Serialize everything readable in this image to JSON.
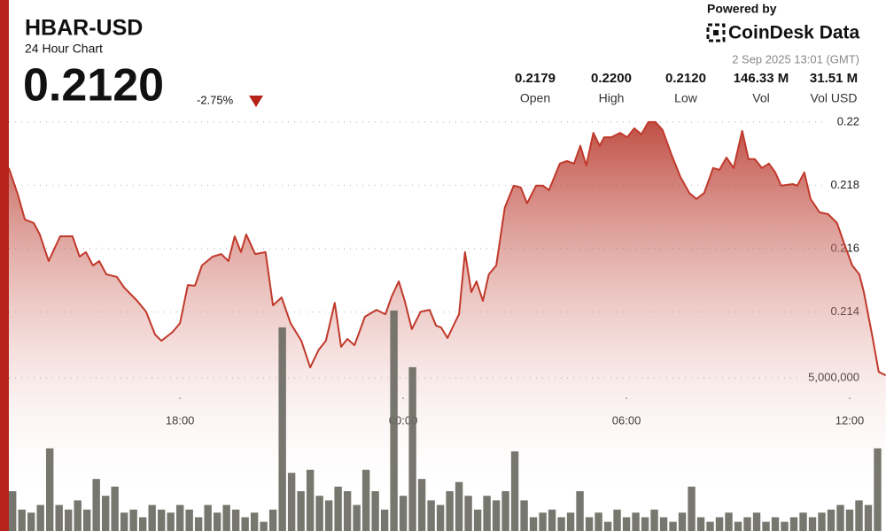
{
  "header": {
    "symbol": "HBAR-USD",
    "subtitle": "24 Hour Chart",
    "price": "0.2120",
    "change": "-2.75%",
    "powered_by": "Powered by",
    "brand": "CoinDesk Data",
    "timestamp": "2 Sep 2025 13:01 (GMT)"
  },
  "stats": [
    {
      "value": "0.2179",
      "label": "Open"
    },
    {
      "value": "0.2200",
      "label": "High"
    },
    {
      "value": "0.2120",
      "label": "Low"
    },
    {
      "value": "146.33 M",
      "label": "Vol"
    },
    {
      "value": "31.51 M",
      "label": "Vol USD"
    }
  ],
  "chart_data": {
    "type": "line",
    "color": "#c0392b",
    "x": [
      13.4,
      13.64,
      13.83,
      14.07,
      14.23,
      14.47,
      14.78,
      15.11,
      15.3,
      15.47,
      15.66,
      15.83,
      16.02,
      16.3,
      16.5,
      16.85,
      17.09,
      17.33,
      17.5,
      17.8,
      18,
      18.21,
      18.4,
      18.59,
      18.88,
      19.11,
      19.3,
      19.47,
      19.64,
      19.78,
      20.02,
      20.3,
      20.5,
      20.73,
      20.97,
      21.26,
      21.5,
      21.73,
      21.92,
      22.16,
      22.33,
      22.5,
      22.69,
      22.97,
      23.28,
      23.52,
      23.69,
      23.88,
      24.04,
      24.23,
      24.47,
      24.71,
      24.88,
      25.02,
      25.19,
      25.42,
      25.5,
      25.66,
      25.83,
      25.97,
      26.14,
      26.3,
      26.5,
      26.73,
      26.97,
      27.16,
      27.33,
      27.57,
      27.76,
      27.92,
      28.21,
      28.4,
      28.59,
      28.76,
      28.92,
      29.11,
      29.28,
      29.4,
      29.59,
      29.83,
      30.02,
      30.21,
      30.4,
      30.59,
      30.78,
      30.97,
      31.21,
      31.45,
      31.69,
      31.88,
      32.09,
      32.33,
      32.5,
      32.69,
      32.88,
      33.11,
      33.28,
      33.45,
      33.64,
      33.83,
      34,
      34.16,
      34.47,
      34.59,
      34.78,
      34.95,
      35.19,
      35.42,
      35.66,
      35.85,
      36.07,
      36.26,
      36.38,
      36.61,
      36.78,
      36.97
    ],
    "values": [
      0.21855,
      0.21771,
      0.21692,
      0.21681,
      0.21645,
      0.21561,
      0.21639,
      0.21639,
      0.21575,
      0.21589,
      0.21547,
      0.21561,
      0.21519,
      0.21511,
      0.21477,
      0.21435,
      0.21401,
      0.21329,
      0.21309,
      0.21337,
      0.21365,
      0.21485,
      0.21483,
      0.21547,
      0.21575,
      0.21583,
      0.21561,
      0.21639,
      0.21589,
      0.21645,
      0.21583,
      0.21589,
      0.21421,
      0.21446,
      0.21365,
      0.21309,
      0.21225,
      0.21281,
      0.21309,
      0.21429,
      0.2129,
      0.21315,
      0.21295,
      0.21385,
      0.21407,
      0.21393,
      0.21449,
      0.21497,
      0.21435,
      0.21346,
      0.21401,
      0.21407,
      0.21357,
      0.21351,
      0.21318,
      0.21374,
      0.21393,
      0.21589,
      0.21463,
      0.21497,
      0.21435,
      0.21519,
      0.21547,
      0.21729,
      0.21799,
      0.21793,
      0.21743,
      0.21799,
      0.21799,
      0.21785,
      0.21869,
      0.21877,
      0.21869,
      0.21925,
      0.21863,
      0.21966,
      0.21925,
      0.21952,
      0.21952,
      0.21966,
      0.21952,
      0.2198,
      0.21961,
      0.22,
      0.22,
      0.21975,
      0.21897,
      0.21827,
      0.21776,
      0.21757,
      0.21776,
      0.21855,
      0.21849,
      0.21888,
      0.21855,
      0.21972,
      0.21883,
      0.21883,
      0.21855,
      0.21869,
      0.21841,
      0.21799,
      0.21804,
      0.21799,
      0.21841,
      0.21757,
      0.21715,
      0.21709,
      0.21681,
      0.21617,
      0.21547,
      0.21519,
      0.21463,
      0.21323,
      0.21211,
      0.212
    ],
    "xlim": [
      13.4,
      37
    ],
    "xticks": [
      {
        "value": 18,
        "label": "18:00"
      },
      {
        "value": 24,
        "label": "00:00"
      },
      {
        "value": 30,
        "label": "06:00"
      },
      {
        "value": 36,
        "label": "12:00"
      }
    ],
    "ylim": [
      0.2115,
      0.2205
    ],
    "yticks": [
      0.214,
      0.216,
      0.218,
      0.22
    ],
    "grid": true,
    "volume": {
      "type": "bar",
      "color": "#6b6b63",
      "x": [
        13.5,
        13.75,
        14,
        14.25,
        14.5,
        14.75,
        15,
        15.25,
        15.5,
        15.75,
        16,
        16.25,
        16.5,
        16.75,
        17,
        17.25,
        17.5,
        17.75,
        18,
        18.25,
        18.5,
        18.75,
        19,
        19.25,
        19.5,
        19.75,
        20,
        20.25,
        20.5,
        20.75,
        21,
        21.25,
        21.5,
        21.75,
        22,
        22.25,
        22.5,
        22.75,
        23,
        23.25,
        23.5,
        23.75,
        24,
        24.25,
        24.5,
        24.75,
        25,
        25.25,
        25.5,
        25.75,
        26,
        26.25,
        26.5,
        26.75,
        27,
        27.25,
        27.5,
        27.75,
        28,
        28.25,
        28.5,
        28.75,
        29,
        29.25,
        29.5,
        29.75,
        30,
        30.25,
        30.5,
        30.75,
        31,
        31.25,
        31.5,
        31.75,
        32,
        32.25,
        32.5,
        32.75,
        33,
        33.25,
        33.5,
        33.75,
        34,
        34.25,
        34.5,
        34.75,
        35,
        35.25,
        35.5,
        35.75,
        36,
        36.25,
        36.5,
        36.75
      ],
      "values": [
        1300000,
        700000,
        600000,
        850000,
        2700000,
        850000,
        700000,
        1000000,
        700000,
        1700000,
        1150000,
        1450000,
        600000,
        700000,
        450000,
        850000,
        700000,
        600000,
        850000,
        700000,
        450000,
        850000,
        600000,
        850000,
        700000,
        450000,
        600000,
        300000,
        700000,
        6650000,
        1900000,
        1300000,
        2000000,
        1150000,
        1000000,
        1450000,
        1300000,
        850000,
        2000000,
        1300000,
        700000,
        7200000,
        1150000,
        5350000,
        1700000,
        1000000,
        850000,
        1300000,
        1600000,
        1150000,
        700000,
        1150000,
        1000000,
        1300000,
        2600000,
        1000000,
        450000,
        600000,
        700000,
        450000,
        600000,
        1300000,
        450000,
        600000,
        300000,
        700000,
        450000,
        600000,
        450000,
        700000,
        450000,
        300000,
        600000,
        1450000,
        450000,
        300000,
        450000,
        600000,
        300000,
        450000,
        600000,
        300000,
        450000,
        300000,
        450000,
        600000,
        450000,
        600000,
        700000,
        850000,
        700000,
        1000000,
        850000,
        2700000
      ],
      "ylim": [
        0,
        10000000
      ],
      "yticks": [
        {
          "value": 5000000,
          "label": "5,000,000"
        }
      ]
    }
  }
}
